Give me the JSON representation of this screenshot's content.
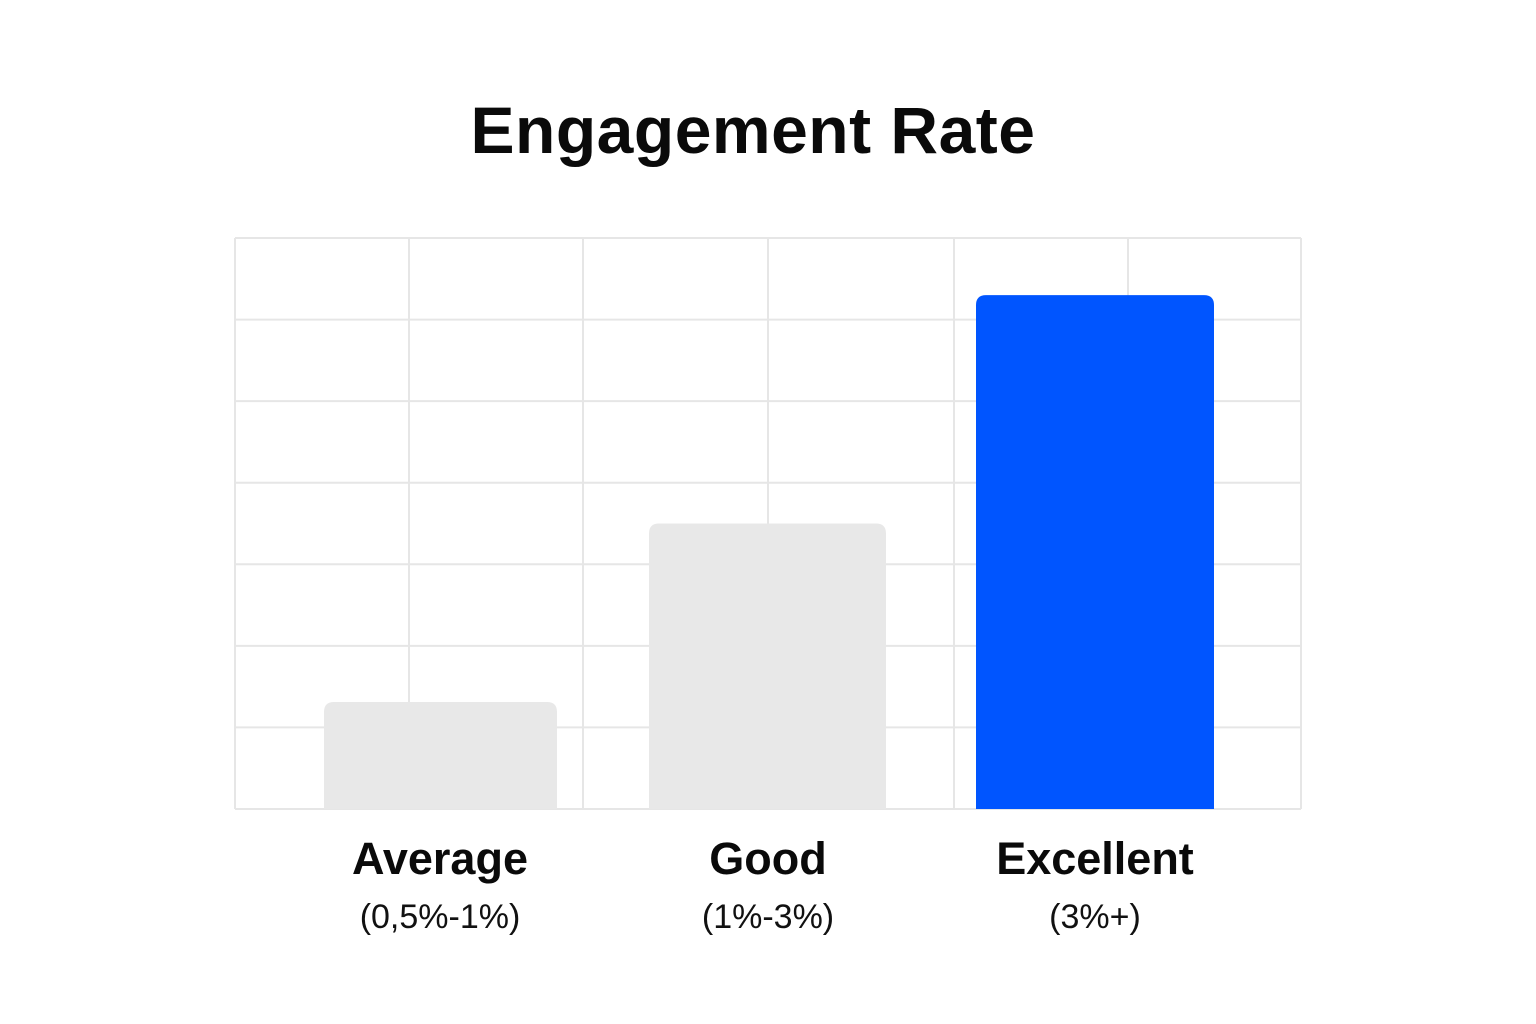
{
  "chart_data": {
    "type": "bar",
    "title": "Engagement Rate",
    "xlabel": "",
    "ylabel": "",
    "grid": true,
    "legend": "none",
    "categories": [
      "Average",
      "Good",
      "Excellent"
    ],
    "ranges": [
      "(0,5%-1%)",
      "(1%-3%)",
      "(3%+)"
    ],
    "values": [
      0.75,
      2,
      3.6
    ],
    "ylim": [
      0,
      4
    ],
    "colors": [
      "#e8e8e8",
      "#e8e8e8",
      "#0055ff"
    ],
    "grid_color": "#e6e6e6"
  }
}
